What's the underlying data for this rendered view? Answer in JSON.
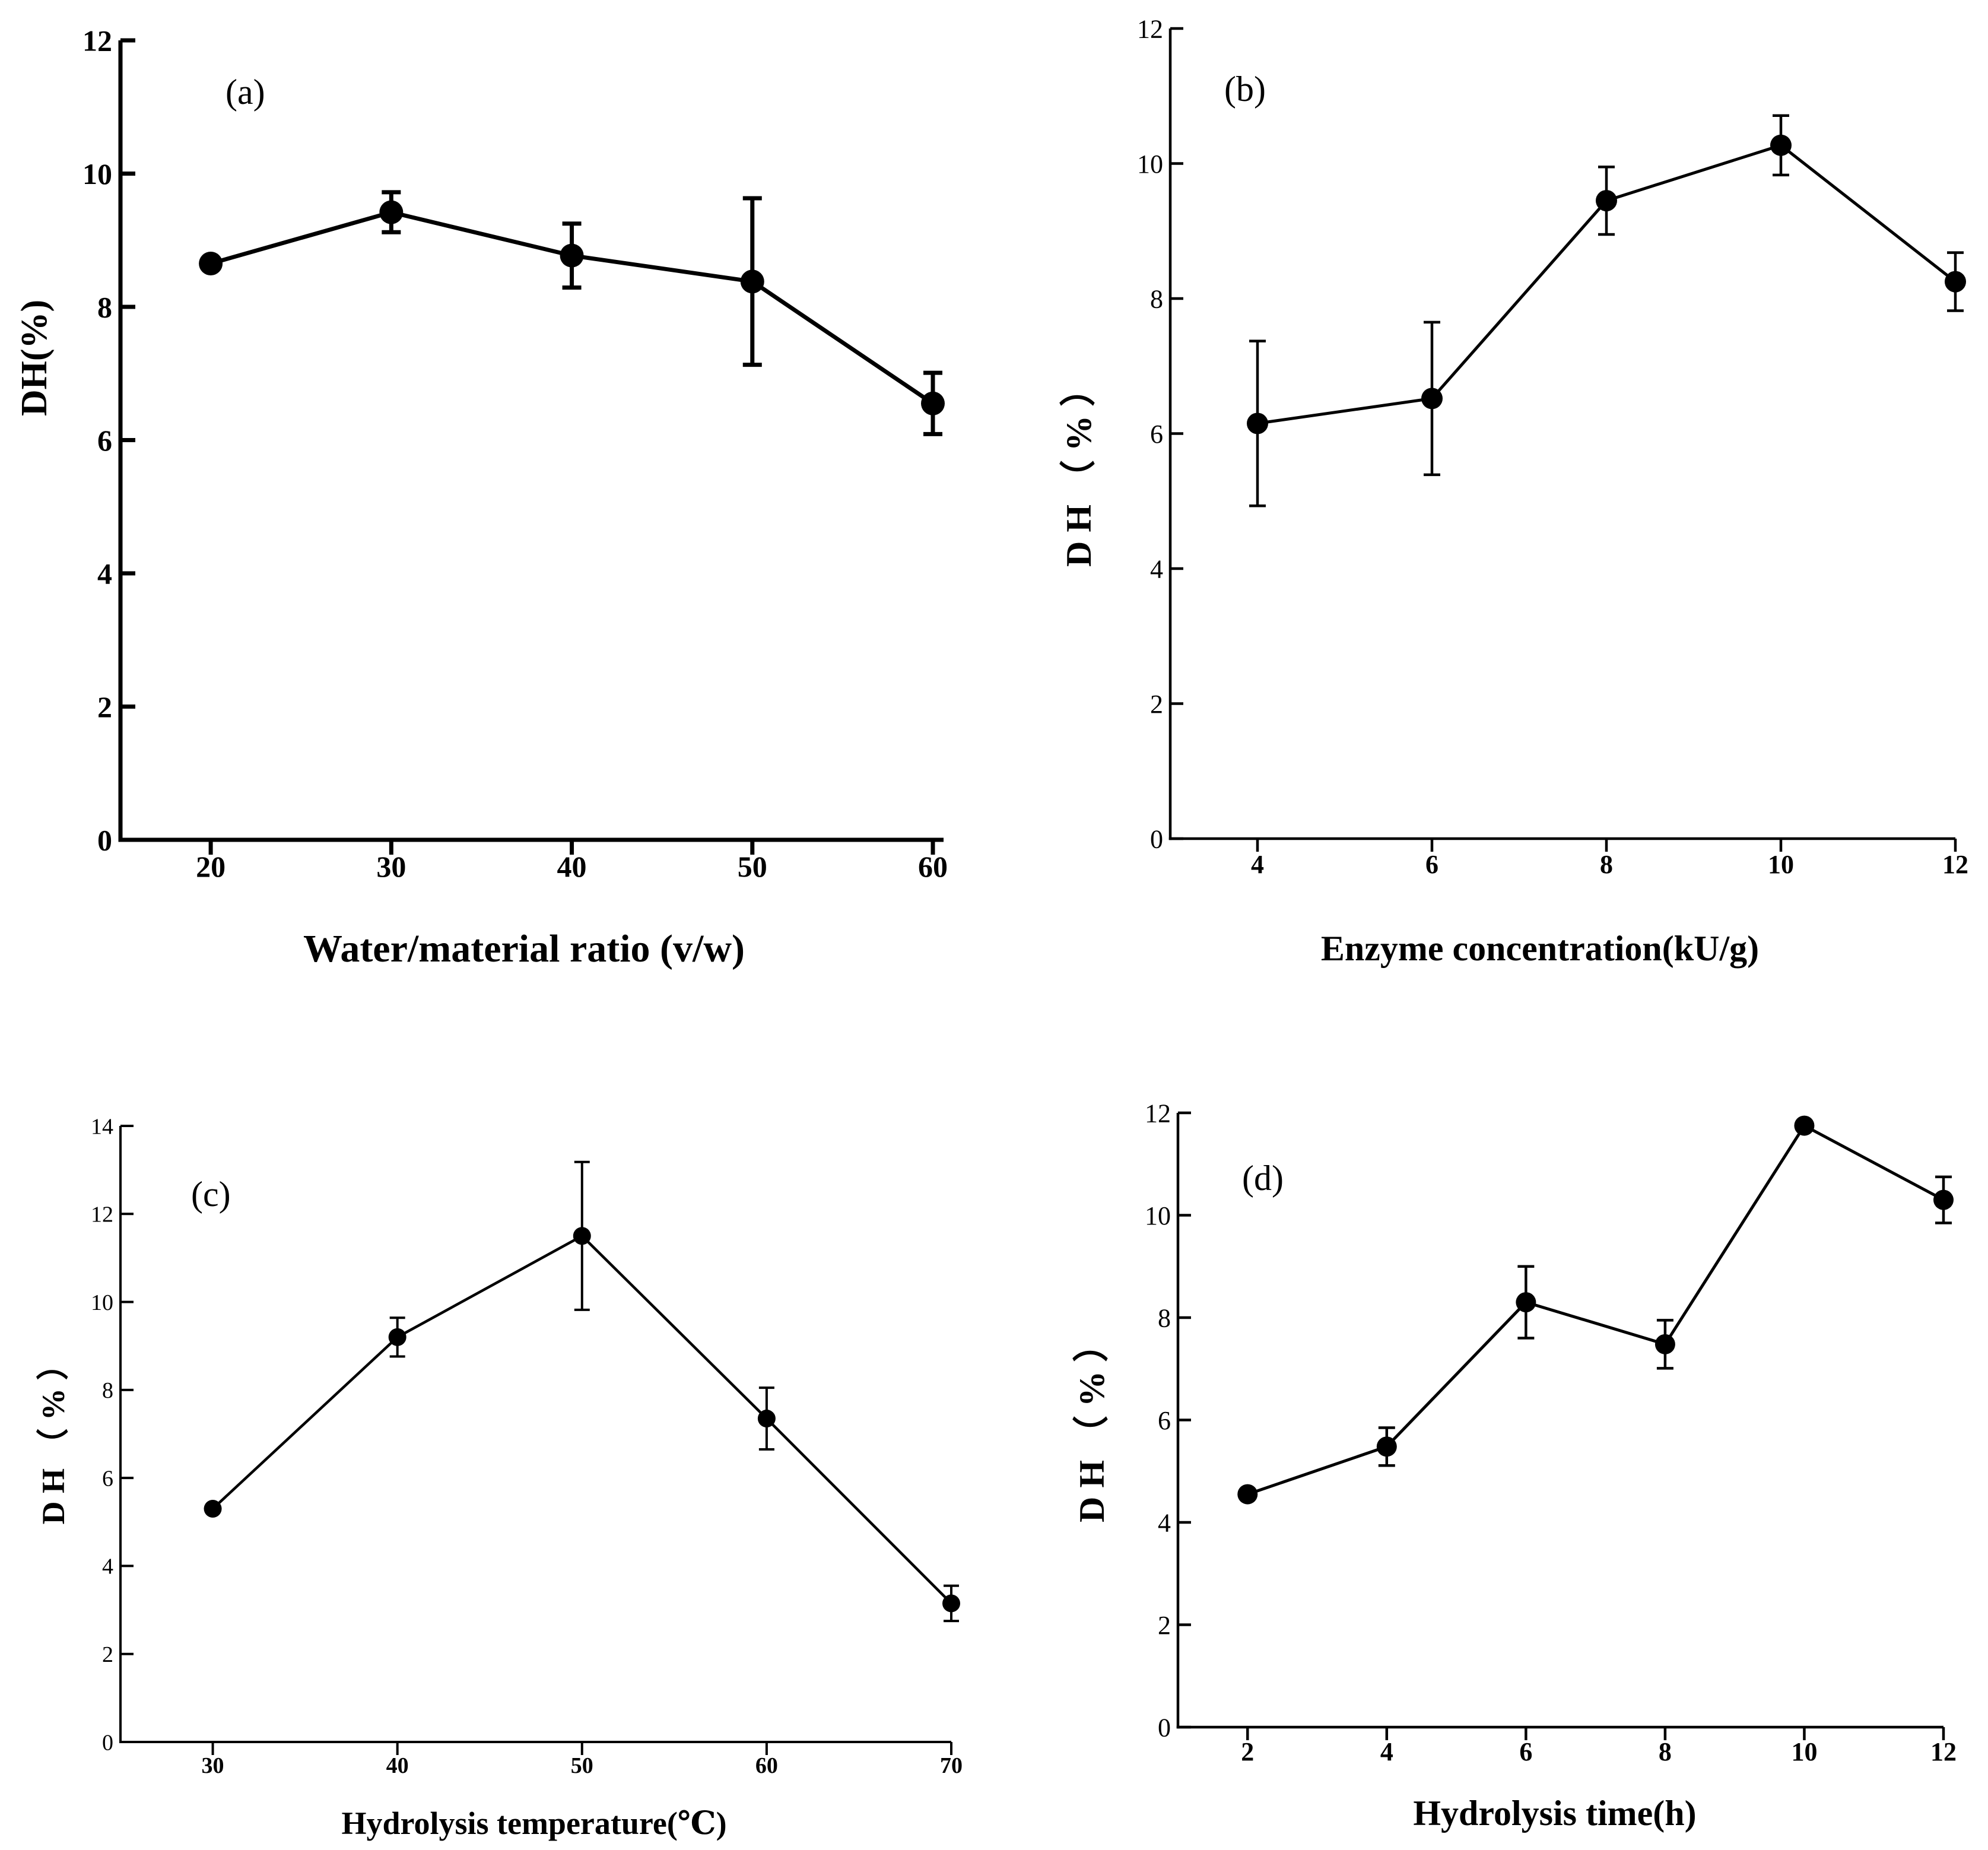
{
  "colors": {
    "ink": "#000000",
    "background": "#ffffff"
  },
  "chart_data": [
    {
      "panel_label": "(a)",
      "type": "line",
      "title": "",
      "xlabel": "Water/material ratio (v/w)",
      "ylabel": "DH(%)",
      "x": [
        20,
        30,
        40,
        50,
        60
      ],
      "xticks": [
        "20",
        "30",
        "40",
        "50",
        "60"
      ],
      "yticks": [
        "0",
        "2",
        "4",
        "6",
        "8",
        "10",
        "12"
      ],
      "xlim": [
        15,
        60
      ],
      "ylim": [
        0,
        12
      ],
      "grid": false,
      "series": [
        {
          "name": "DH",
          "values": [
            8.65,
            9.42,
            8.77,
            8.38,
            6.55
          ],
          "error": [
            0.0,
            0.3,
            0.48,
            1.25,
            0.46
          ]
        }
      ]
    },
    {
      "panel_label": "(b)",
      "type": "line",
      "title": "",
      "xlabel": "Enzyme concentration(kU/g)",
      "ylabel": "D H （ % ）",
      "x": [
        4,
        6,
        8,
        10,
        12
      ],
      "xticks": [
        "4",
        "6",
        "8",
        "10",
        "12"
      ],
      "yticks": [
        "0",
        "2",
        "4",
        "6",
        "8",
        "10",
        "12"
      ],
      "xlim": [
        3,
        12
      ],
      "ylim": [
        0,
        12
      ],
      "grid": false,
      "series": [
        {
          "name": "DH",
          "values": [
            6.15,
            6.52,
            9.45,
            10.27,
            8.25
          ],
          "error": [
            1.22,
            1.13,
            0.5,
            0.44,
            0.43
          ]
        }
      ]
    },
    {
      "panel_label": "(c)",
      "type": "line",
      "title": "",
      "xlabel": "Hydrolysis temperature(℃)",
      "ylabel": "D H （ % ）",
      "x": [
        30,
        40,
        50,
        60,
        70
      ],
      "xticks": [
        "30",
        "40",
        "50",
        "60",
        "70"
      ],
      "yticks": [
        "0",
        "2",
        "4",
        "6",
        "8",
        "10",
        "12",
        "14"
      ],
      "xlim": [
        25,
        70
      ],
      "ylim": [
        0,
        14
      ],
      "grid": false,
      "series": [
        {
          "name": "DH",
          "values": [
            5.3,
            9.2,
            11.5,
            7.35,
            3.15
          ],
          "error": [
            0.0,
            0.44,
            1.68,
            0.7,
            0.4
          ]
        }
      ]
    },
    {
      "panel_label": "(d)",
      "type": "line",
      "title": "",
      "xlabel": "Hydrolysis time(h)",
      "ylabel": "D H （ % ）",
      "x": [
        2,
        4,
        6,
        8,
        10,
        12
      ],
      "xticks": [
        "2",
        "4",
        "6",
        "8",
        "10",
        "12"
      ],
      "yticks": [
        "0",
        "2",
        "4",
        "6",
        "8",
        "10",
        "12"
      ],
      "xlim": [
        1,
        12
      ],
      "ylim": [
        0,
        12
      ],
      "grid": false,
      "series": [
        {
          "name": "DH",
          "values": [
            4.55,
            5.48,
            8.3,
            7.48,
            11.75,
            10.3
          ],
          "error": [
            0.0,
            0.37,
            0.7,
            0.47,
            0.0,
            0.45
          ]
        }
      ]
    }
  ]
}
